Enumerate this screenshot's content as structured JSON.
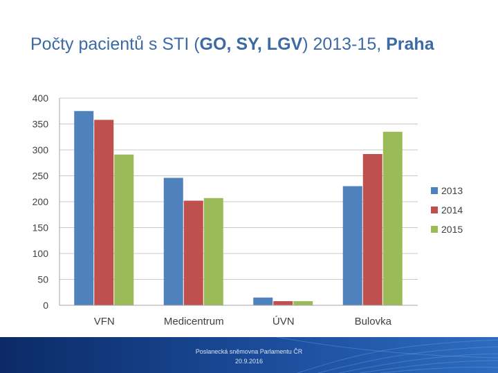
{
  "slide": {
    "title_prefix": "Počty pacientů s STI (",
    "title_abbrev": "GO, SY, LGV",
    "title_middle": ") 2013-15, ",
    "title_city": "Praha",
    "footer_line1": "Poslanecká sněmovna Parlamentu ČR",
    "footer_line2": "20.9.2016"
  },
  "chart_data": {
    "type": "bar",
    "title": "",
    "xlabel": "",
    "ylabel": "",
    "categories": [
      "VFN",
      "Medicentrum",
      "ÚVN",
      "Bulovka"
    ],
    "series": [
      {
        "name": "2013",
        "color": "#4f81bd",
        "values": [
          375,
          246,
          15,
          230
        ]
      },
      {
        "name": "2014",
        "color": "#c0504d",
        "values": [
          358,
          202,
          8,
          292
        ]
      },
      {
        "name": "2015",
        "color": "#9bbb59",
        "values": [
          291,
          207,
          8,
          335
        ]
      }
    ],
    "ylim": [
      0,
      400
    ],
    "yticks": [
      0,
      50,
      100,
      150,
      200,
      250,
      300,
      350,
      400
    ],
    "grid": true,
    "legend_position": "right"
  },
  "colors": {
    "title": "#3b6aa5",
    "footer_dark": "#0b2a66",
    "footer_light": "#2d6cc0"
  }
}
